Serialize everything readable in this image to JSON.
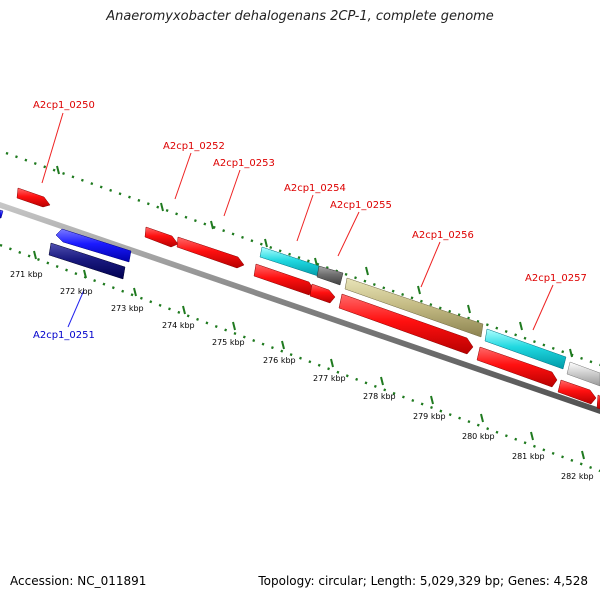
{
  "title": "Anaeromyxobacter dehalogenans 2CP-1, complete genome",
  "footer": {
    "accession": "Accession: NC_011891",
    "summary": "Topology: circular; Length: 5,029,329 bp; Genes: 4,528"
  },
  "colors": {
    "backbone": "#808080",
    "tick": "#1f7a1f",
    "label_forward": "#dd0000",
    "label_reverse": "#0000cc",
    "leader_forward": "#ee2222",
    "leader_reverse": "#2222ee"
  },
  "scale_ticks": [
    "271 kbp",
    "272 kbp",
    "273 kbp",
    "274 kbp",
    "275 kbp",
    "276 kbp",
    "277 kbp",
    "278 kbp",
    "279 kbp",
    "280 kbp",
    "281 kbp",
    "282 kbp"
  ],
  "gene_labels": [
    {
      "text": "A2cp1_0250",
      "strand": "forward"
    },
    {
      "text": "A2cp1_0252",
      "strand": "forward"
    },
    {
      "text": "A2cp1_0253",
      "strand": "forward"
    },
    {
      "text": "A2cp1_0254",
      "strand": "forward"
    },
    {
      "text": "A2cp1_0255",
      "strand": "forward"
    },
    {
      "text": "A2cp1_0256",
      "strand": "forward"
    },
    {
      "text": "A2cp1_0257",
      "strand": "forward"
    },
    {
      "text": "A2cp1_0251",
      "strand": "reverse"
    }
  ]
}
